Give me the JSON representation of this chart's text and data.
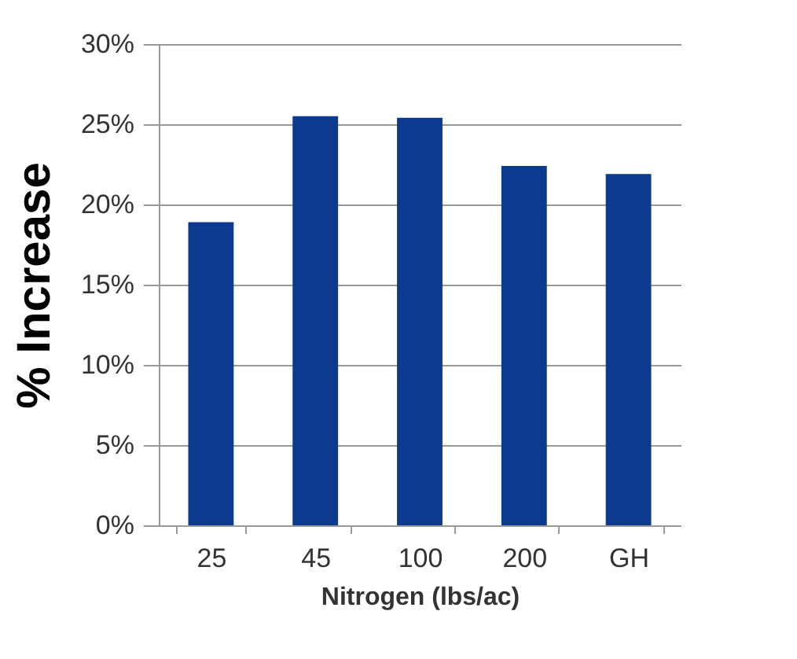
{
  "chart_data": {
    "type": "bar",
    "xlabel": "Nitrogen (lbs/ac)",
    "ylabel": "% Increase",
    "categories": [
      "25",
      "45",
      "100",
      "200",
      "GH"
    ],
    "values": [
      18.9,
      25.5,
      25.4,
      22.4,
      21.9
    ],
    "color": "#0b3a8f",
    "ylim": [
      0,
      30
    ],
    "yticks": [
      {
        "value": 0,
        "label": "0%"
      },
      {
        "value": 5,
        "label": "5%"
      },
      {
        "value": 10,
        "label": "10%"
      },
      {
        "value": 15,
        "label": "15%"
      },
      {
        "value": 20,
        "label": "20%"
      },
      {
        "value": 25,
        "label": "25%"
      },
      {
        "value": 30,
        "label": "30%"
      }
    ],
    "grid": "y"
  }
}
